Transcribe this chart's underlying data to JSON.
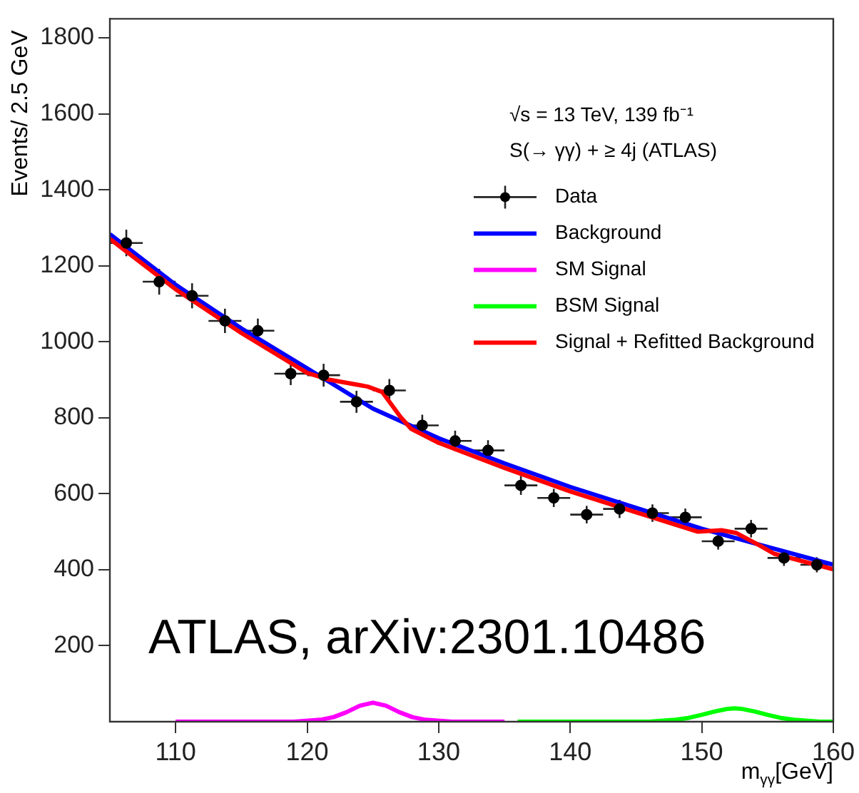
{
  "chart_data": {
    "type": "line",
    "xlabel": "m$_{γγ}$[GeV]",
    "ylabel": "Events/ 2.5 GeV",
    "annotations": [
      "√s = 13 TeV, 139 fb⁻¹",
      "S(→ γγ) + ≥ 4j (ATLAS)",
      "ATLAS, arXiv:2301.10486"
    ],
    "xlim": [
      105,
      160
    ],
    "xticks": [
      110,
      120,
      130,
      140,
      150,
      160
    ],
    "ylim": [
      0,
      1850
    ],
    "yticks": [
      200,
      400,
      600,
      800,
      1000,
      1200,
      1400,
      1600,
      1800
    ],
    "legend": "top right",
    "series": [
      {
        "name": "Data",
        "type": "scatter",
        "marker": "circle",
        "color": "#000000",
        "x": [
          106.25,
          108.75,
          111.25,
          113.75,
          116.25,
          118.75,
          121.25,
          123.75,
          126.25,
          128.75,
          131.25,
          133.75,
          136.25,
          138.75,
          141.25,
          143.75,
          146.25,
          148.75,
          151.25,
          153.75,
          156.25,
          158.75
        ],
        "values": [
          1260,
          1158,
          1121,
          1055,
          1029,
          916,
          912,
          842,
          872,
          780,
          739,
          714,
          622,
          589,
          545,
          560,
          549,
          538,
          475,
          508,
          431,
          413
        ],
        "errors": [
          35,
          34,
          33,
          32,
          32,
          30,
          30,
          29,
          30,
          28,
          27,
          27,
          25,
          24,
          23,
          24,
          23,
          23,
          22,
          23,
          21,
          20
        ],
        "xerrors": [
          1.25,
          1.25,
          1.25,
          1.25,
          1.25,
          1.25,
          1.25,
          1.25,
          1.25,
          1.25,
          1.25,
          1.25,
          1.25,
          1.25,
          1.25,
          1.25,
          1.25,
          1.25,
          1.25,
          1.25,
          1.25,
          1.25
        ]
      },
      {
        "name": "Background",
        "marker": "none",
        "color": "#0000ff",
        "x": [
          105,
          110,
          115,
          120,
          125,
          130,
          135,
          140,
          145,
          150,
          155,
          160
        ],
        "values": [
          1283,
          1150,
          1035,
          930,
          824,
          746,
          680,
          618,
          563,
          508,
          460,
          413
        ]
      },
      {
        "name": "SM Signal",
        "marker": "none",
        "color": "#ff00ff",
        "x": [
          110,
          119,
          121,
          122,
          123,
          124,
          125,
          126,
          127,
          128,
          129,
          131,
          135
        ],
        "values": [
          0,
          0,
          5,
          12,
          25,
          42,
          50,
          42,
          25,
          12,
          5,
          0,
          0
        ]
      },
      {
        "name": "BSM Signal",
        "marker": "none",
        "color": "#00ff00",
        "x": [
          136,
          146,
          148,
          149,
          150,
          151,
          152,
          152.5,
          153,
          154,
          155,
          156,
          157,
          159,
          160
        ],
        "values": [
          0,
          0,
          5,
          10,
          18,
          27,
          34,
          35,
          34,
          27,
          18,
          10,
          5,
          0,
          0
        ]
      },
      {
        "name": "Signal + Refitted Background",
        "marker": "none",
        "color": "#ff0000",
        "x": [
          105,
          110,
          115,
          120,
          121.7,
          124.6,
          125.7,
          127.1,
          127.9,
          130,
          135,
          140,
          145,
          149.7,
          151.5,
          152.6,
          154.4,
          155.5,
          160
        ],
        "values": [
          1271,
          1138,
          1023,
          918,
          900,
          882,
          868,
          802,
          771,
          734,
          668,
          606,
          551,
          500,
          504,
          497,
          464,
          442,
          401
        ]
      }
    ]
  }
}
